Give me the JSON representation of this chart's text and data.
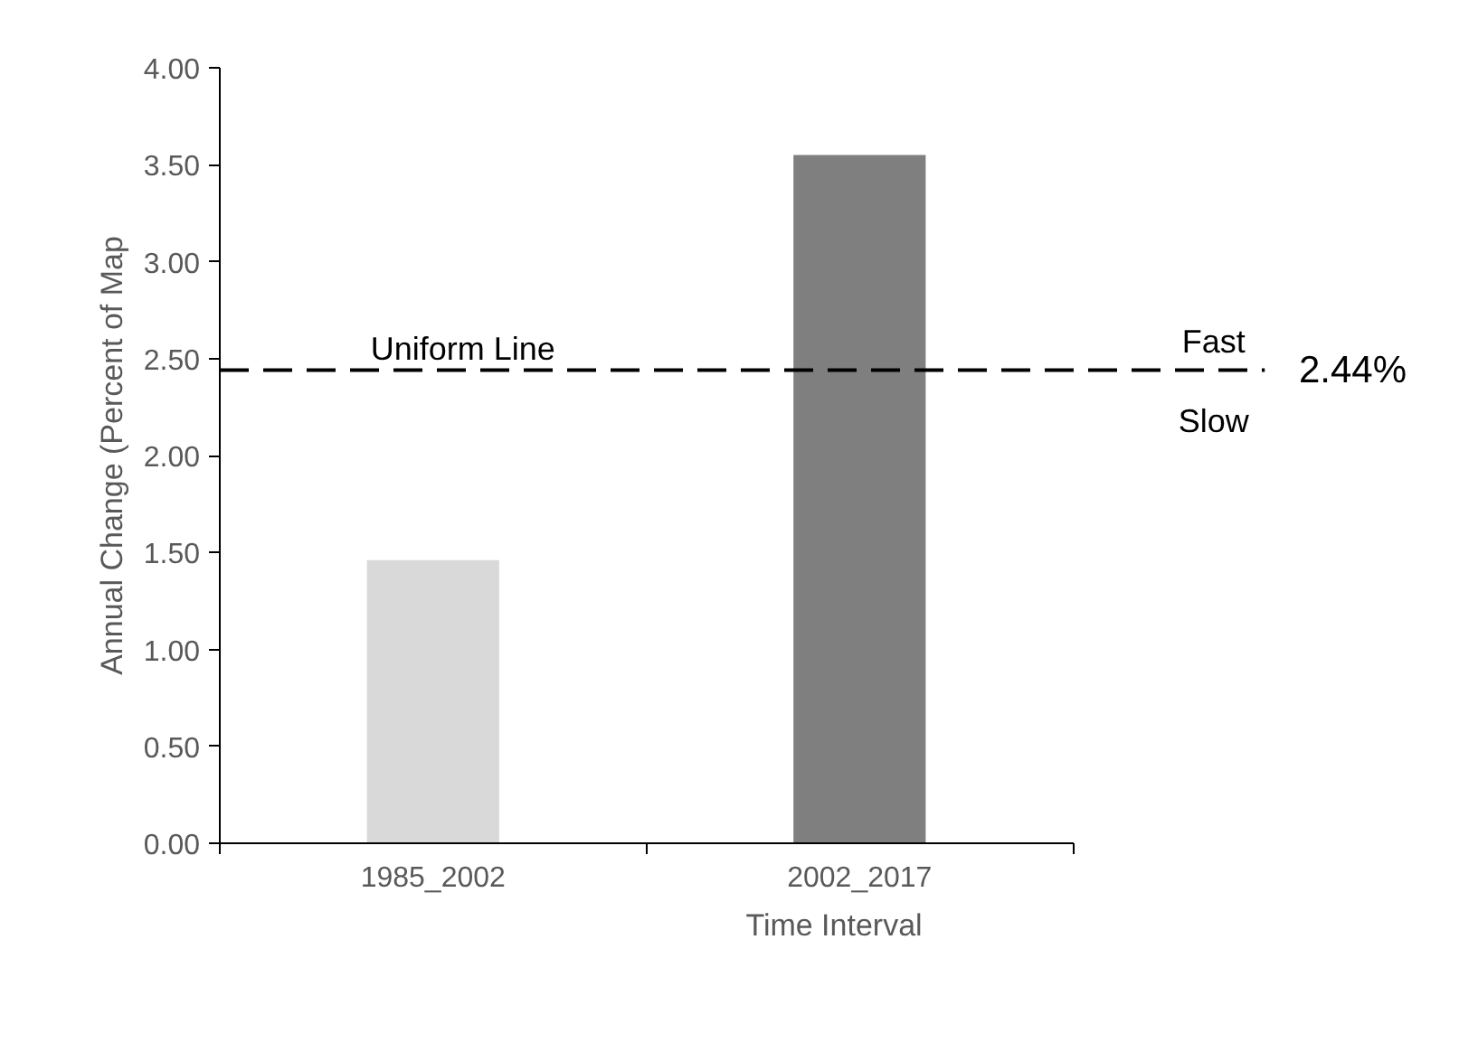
{
  "chart_data": {
    "type": "bar",
    "xlabel": "Time Interval",
    "ylabel": "Annual Change (Percent of Map",
    "categories": [
      "1985_2002",
      "2002_2017"
    ],
    "values": [
      1.46,
      3.55
    ],
    "colors": [
      "#d9d9d9",
      "#7f7f7f"
    ],
    "ylim": [
      0,
      4
    ],
    "yticks": [
      {
        "value": 0,
        "label": "0.00"
      },
      {
        "value": 0.5,
        "label": "0.50"
      },
      {
        "value": 1,
        "label": "1.00"
      },
      {
        "value": 1.5,
        "label": "1.50"
      },
      {
        "value": 2,
        "label": "2.00"
      },
      {
        "value": 2.5,
        "label": "2.50"
      },
      {
        "value": 3,
        "label": "3.00"
      },
      {
        "value": 3.5,
        "label": "3.50"
      },
      {
        "value": 4,
        "label": "4.00"
      }
    ],
    "ref_lines": [
      {
        "axis": "y",
        "value": 2.44,
        "label": "2.44%",
        "color": "#000000",
        "line_style": "dashed"
      }
    ],
    "annotations": [
      {
        "text": "Uniform Line",
        "x": "1985_2002",
        "y": 2.44
      },
      {
        "text": "Fast",
        "y": 2.44
      },
      {
        "text": "Slow",
        "y": 2.44
      }
    ],
    "grid": false
  }
}
